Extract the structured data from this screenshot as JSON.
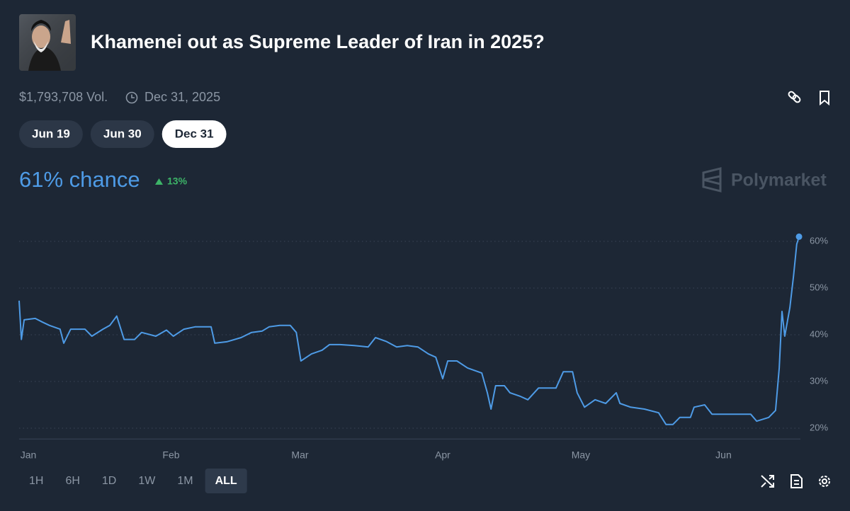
{
  "header": {
    "title": "Khamenei out as Supreme Leader of Iran in 2025?",
    "volume": "$1,793,708 Vol.",
    "end_date": "Dec 31, 2025"
  },
  "date_tabs": [
    {
      "label": "Jun 19",
      "active": false
    },
    {
      "label": "Jun 30",
      "active": false
    },
    {
      "label": "Dec 31",
      "active": true
    }
  ],
  "chance": "61% chance",
  "change": "13%",
  "brand": "Polymarket",
  "range_buttons": [
    {
      "label": "1H",
      "active": false
    },
    {
      "label": "6H",
      "active": false
    },
    {
      "label": "1D",
      "active": false
    },
    {
      "label": "1W",
      "active": false
    },
    {
      "label": "1M",
      "active": false
    },
    {
      "label": "ALL",
      "active": true
    }
  ],
  "chart_data": {
    "type": "line",
    "xlim": [
      -2,
      167.7
    ],
    "xticks": [
      {
        "value": 0,
        "label": "Jan"
      },
      {
        "value": 31,
        "label": "Feb"
      },
      {
        "value": 59,
        "label": "Mar"
      },
      {
        "value": 90,
        "label": "Apr"
      },
      {
        "value": 120,
        "label": "May"
      },
      {
        "value": 151,
        "label": "Jun"
      }
    ],
    "ylim": [
      17.7,
      66
    ],
    "yticks": [
      {
        "value": 20,
        "label": "20%"
      },
      {
        "value": 30,
        "label": "30%"
      },
      {
        "value": 40,
        "label": "40%"
      },
      {
        "value": 50,
        "label": "50%"
      },
      {
        "value": 60,
        "label": "60%"
      }
    ],
    "grid": true,
    "series": [
      {
        "name": "Dec 31",
        "color": "#4e9be6",
        "x": [
          -2,
          -1.5,
          -0.9,
          1.5,
          3.1,
          4.6,
          6.9,
          7.7,
          9.2,
          12.3,
          13.8,
          16.2,
          17.7,
          19.2,
          20.8,
          23.1,
          24.6,
          27.7,
          30,
          31.5,
          33.8,
          36.2,
          39.7,
          40.5,
          43.1,
          46.2,
          48.5,
          50.8,
          52.3,
          54.6,
          56.9,
          58.2,
          59.2,
          61.5,
          63.8,
          65.4,
          67.7,
          70.8,
          73.8,
          75.4,
          77.7,
          80,
          82.3,
          84.6,
          86.9,
          88.5,
          90,
          91.1,
          93.1,
          95.4,
          98.5,
          99.7,
          100.5,
          101.5,
          103.4,
          104.6,
          106.9,
          108.5,
          110.8,
          114.6,
          116.2,
          118.2,
          119.2,
          120.8,
          123.1,
          125.4,
          127.7,
          128.5,
          130.8,
          133.8,
          136.9,
          138.5,
          140,
          141.5,
          143.8,
          144.6,
          146.9,
          148.5,
          150.8,
          153.8,
          156.9,
          158.2,
          160.8,
          162.3,
          163.1,
          163.7,
          164.3,
          165.4,
          166.2,
          166.9,
          167.4
        ],
        "values": [
          47.3,
          39,
          43.2,
          43.5,
          42.7,
          42,
          41.2,
          38.2,
          41.2,
          41.2,
          39.7,
          41.2,
          42,
          44,
          39,
          39,
          40.5,
          39.7,
          41,
          39.7,
          41.2,
          41.7,
          41.7,
          38.2,
          38.5,
          39.4,
          40.5,
          40.8,
          41.7,
          42,
          42,
          40.5,
          34.4,
          35.9,
          36.7,
          37.9,
          37.9,
          37.7,
          37.4,
          39.4,
          38.6,
          37.4,
          37.7,
          37.4,
          35.9,
          35.2,
          30.6,
          34.4,
          34.4,
          32.9,
          31.8,
          27.6,
          24.1,
          29.1,
          29.1,
          27.6,
          26.8,
          26.1,
          28.6,
          28.6,
          32.1,
          32.1,
          27.6,
          24.5,
          26.1,
          25.3,
          27.6,
          25.3,
          24.5,
          24.1,
          23.3,
          20.8,
          20.8,
          22.3,
          22.3,
          24.5,
          25,
          23,
          23,
          23,
          23,
          21.5,
          22.3,
          23.8,
          32.9,
          45,
          39.7,
          45.8,
          52.6,
          59.4,
          61
        ]
      }
    ]
  }
}
